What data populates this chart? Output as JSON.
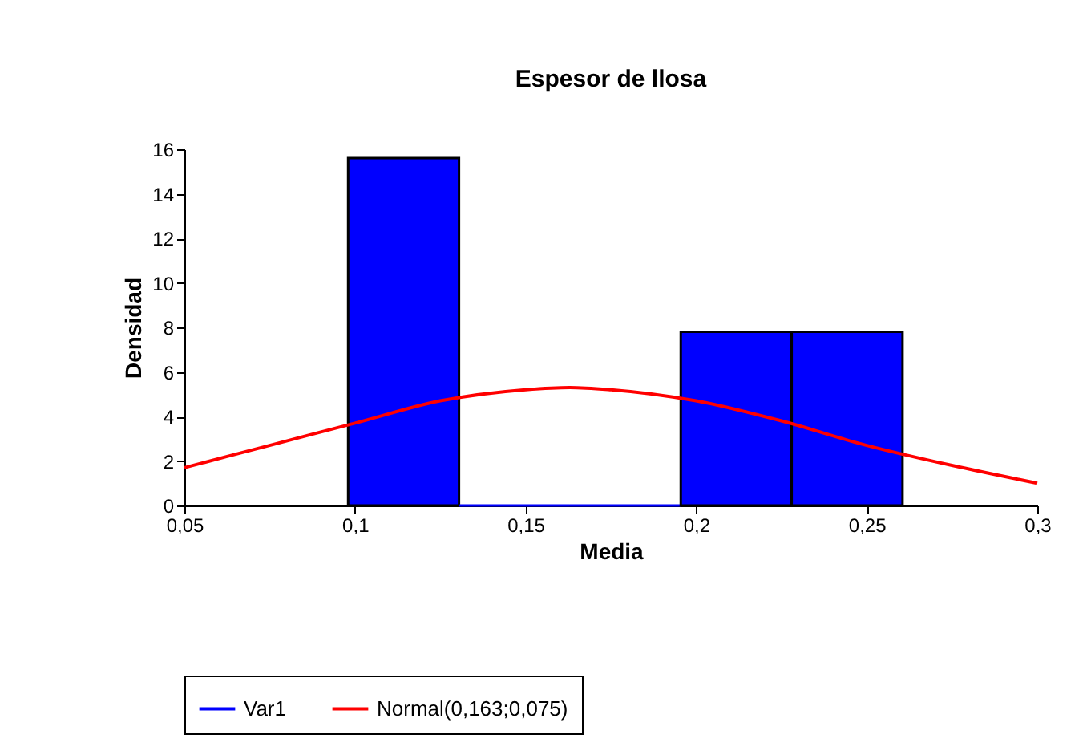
{
  "chart_data": {
    "type": "histogram",
    "title": "Espesor de llosa",
    "xlabel": "Media",
    "ylabel": "Densidad",
    "bins": [
      0.098,
      0.1305,
      0.163,
      0.1955,
      0.228,
      0.2605
    ],
    "series": [
      {
        "name": "Var1",
        "type": "histogram",
        "color": "#0000ff",
        "values": [
          15.6,
          0,
          0,
          7.8,
          7.8
        ]
      },
      {
        "name": "Normal(0,163;0,075)",
        "type": "line",
        "color": "#ff0000",
        "x": [
          0.05,
          0.075,
          0.1,
          0.125,
          0.15,
          0.163,
          0.175,
          0.2,
          0.225,
          0.25,
          0.275,
          0.3
        ],
        "values": [
          1.7,
          2.7,
          3.7,
          4.7,
          5.2,
          5.3,
          5.2,
          4.7,
          3.8,
          2.7,
          1.8,
          1.0
        ]
      }
    ],
    "xlim": [
      0.05,
      0.3
    ],
    "xticks": [
      {
        "value": 0.05,
        "label": "0,05"
      },
      {
        "value": 0.1,
        "label": "0,1"
      },
      {
        "value": 0.15,
        "label": "0,15"
      },
      {
        "value": 0.2,
        "label": "0,2"
      },
      {
        "value": 0.25,
        "label": "0,25"
      },
      {
        "value": 0.3,
        "label": "0,3"
      }
    ],
    "ylim": [
      0,
      16
    ],
    "yticks": [
      0,
      2,
      4,
      6,
      8,
      10,
      12,
      14,
      16
    ],
    "grid": false,
    "legend": "bottom",
    "marker": "none",
    "line_style": "solid"
  }
}
